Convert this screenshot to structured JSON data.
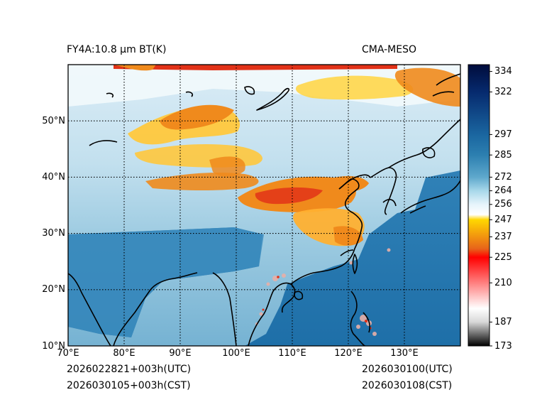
{
  "title_left": "FY4A:10.8 µm BT(K)",
  "title_right": "CMA-MESO",
  "time_utc_init": "2026022821+003h(UTC)",
  "time_cst_init": "2026030105+003h(CST)",
  "time_utc_valid": "2026030100(UTC)",
  "time_cst_valid": "2026030108(CST)",
  "chart_data": {
    "type": "heatmap",
    "variable": "Brightness temperature (K)",
    "x_axis": {
      "range": [
        70,
        140
      ],
      "ticks": [
        70,
        80,
        90,
        100,
        110,
        120,
        130
      ],
      "labels": [
        "70°E",
        "80°E",
        "90°E",
        "100°E",
        "110°E",
        "120°E",
        "130°E"
      ]
    },
    "y_axis": {
      "range": [
        10,
        60
      ],
      "ticks": [
        10,
        20,
        30,
        40,
        50
      ],
      "labels": [
        "10°N",
        "20°N",
        "30°N",
        "40°N",
        "50°N"
      ]
    },
    "grid": "dotted",
    "colorbar": {
      "range": [
        173,
        338
      ],
      "ticks": [
        173,
        187,
        210,
        225,
        237,
        247,
        256,
        264,
        272,
        285,
        297,
        322,
        334
      ],
      "labels": [
        "173",
        "187",
        "210",
        "225",
        "237",
        "247",
        "256",
        "264",
        "272",
        "285",
        "297",
        "322",
        "334"
      ],
      "stops": [
        {
          "v": 173,
          "c": "#000000"
        },
        {
          "v": 187,
          "c": "#d8d8d8"
        },
        {
          "v": 195,
          "c": "#ffffff"
        },
        {
          "v": 225,
          "c": "#ff0000"
        },
        {
          "v": 230,
          "c": "#e8641a"
        },
        {
          "v": 247,
          "c": "#ffd700"
        },
        {
          "v": 250,
          "c": "#ffffff"
        },
        {
          "v": 256,
          "c": "#e6f4fb"
        },
        {
          "v": 264,
          "c": "#a8d8ea"
        },
        {
          "v": 272,
          "c": "#5ea8cc"
        },
        {
          "v": 285,
          "c": "#2c7fb0"
        },
        {
          "v": 297,
          "c": "#1a66a0"
        },
        {
          "v": 322,
          "c": "#062a6e"
        },
        {
          "v": 338,
          "c": "#000c3c"
        }
      ]
    },
    "colors": {
      "cold_cloud_orange": "#f08a1c",
      "cold_cloud_yellow": "#ffc83c",
      "deep_red": "#e23218",
      "sea_blue": "#1e6fa8",
      "land_light_blue": "#9ccbe2",
      "coast": "#000000"
    }
  }
}
